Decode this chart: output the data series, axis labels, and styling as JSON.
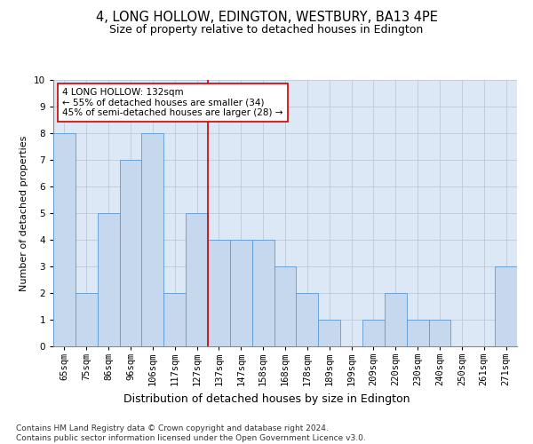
{
  "title": "4, LONG HOLLOW, EDINGTON, WESTBURY, BA13 4PE",
  "subtitle": "Size of property relative to detached houses in Edington",
  "xlabel": "Distribution of detached houses by size in Edington",
  "ylabel": "Number of detached properties",
  "categories": [
    "65sqm",
    "75sqm",
    "86sqm",
    "96sqm",
    "106sqm",
    "117sqm",
    "127sqm",
    "137sqm",
    "147sqm",
    "158sqm",
    "168sqm",
    "178sqm",
    "189sqm",
    "199sqm",
    "209sqm",
    "220sqm",
    "230sqm",
    "240sqm",
    "250sqm",
    "261sqm",
    "271sqm"
  ],
  "values": [
    8,
    2,
    5,
    7,
    8,
    2,
    5,
    4,
    4,
    4,
    3,
    2,
    1,
    0,
    1,
    2,
    1,
    1,
    0,
    0,
    3
  ],
  "bar_color": "#c5d8ed",
  "bar_edge_color": "#5b9bd5",
  "highlight_line_index": 7,
  "highlight_line_label": "4 LONG HOLLOW: 132sqm",
  "annotation_line1": "← 55% of detached houses are smaller (34)",
  "annotation_line2": "45% of semi-detached houses are larger (28) →",
  "annotation_box_color": "#ffffff",
  "annotation_box_edge_color": "#cc0000",
  "vline_color": "#cc0000",
  "ylim": [
    0,
    10
  ],
  "yticks": [
    0,
    1,
    2,
    3,
    4,
    5,
    6,
    7,
    8,
    9,
    10
  ],
  "grid_color": "#c0c8d8",
  "background_color": "#dce8f5",
  "footer_line1": "Contains HM Land Registry data © Crown copyright and database right 2024.",
  "footer_line2": "Contains public sector information licensed under the Open Government Licence v3.0.",
  "title_fontsize": 10.5,
  "subtitle_fontsize": 9,
  "xlabel_fontsize": 9,
  "ylabel_fontsize": 8,
  "tick_fontsize": 7.5,
  "annotation_fontsize": 7.5,
  "footer_fontsize": 6.5
}
